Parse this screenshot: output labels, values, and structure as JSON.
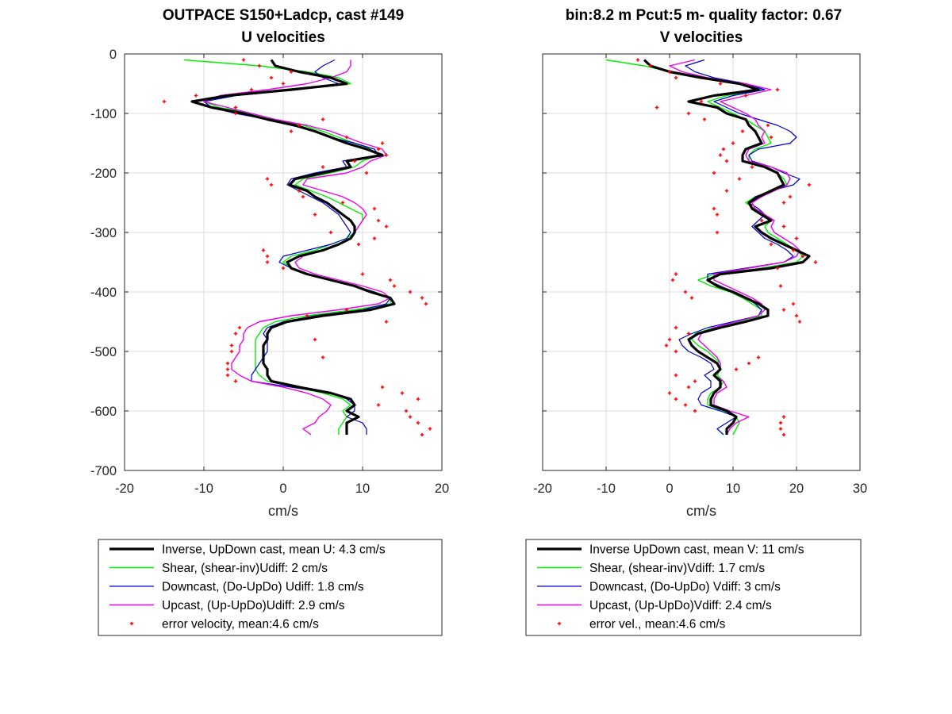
{
  "chart_data": [
    {
      "type": "line",
      "title": "OUTPACE S150+Ladcp, cast #149",
      "subtitle": "U velocities",
      "xlabel": "cm/s",
      "ylabel": "",
      "xlim": [
        -20,
        20
      ],
      "ylim": [
        -700,
        0
      ],
      "xticks": [
        "-20",
        "-10",
        "0",
        "10",
        "20"
      ],
      "yticks": [
        "0",
        "-100",
        "-200",
        "-300",
        "-400",
        "-500",
        "-600",
        "-700"
      ],
      "grid": true,
      "legend_position": "below",
      "colors": {
        "inverse": "#000000",
        "shear": "#00ee00",
        "downcast": "#0000cc",
        "upcast": "#ee00ee",
        "error": "#ff0000"
      },
      "legend": [
        "Inverse, UpDown cast, mean U:  4.3 cm/s",
        "Shear, (shear-inv)Udiff:  2 cm/s",
        "Downcast, (Do-UpDo) Udiff:  1.8 cm/s",
        "Upcast, (Up-UpDo)Udiff:  2.9 cm/s",
        "error velocity, mean:4.6 cm/s"
      ],
      "depth": [
        -10,
        -20,
        -30,
        -40,
        -50,
        -60,
        -70,
        -80,
        -90,
        -100,
        -110,
        -120,
        -130,
        -140,
        -150,
        -160,
        -170,
        -180,
        -190,
        -200,
        -210,
        -220,
        -230,
        -240,
        -250,
        -260,
        -270,
        -280,
        -290,
        -300,
        -310,
        -320,
        -330,
        -340,
        -350,
        -360,
        -370,
        -380,
        -390,
        -400,
        -410,
        -420,
        -430,
        -440,
        -450,
        -460,
        -470,
        -480,
        -490,
        -500,
        -510,
        -520,
        -530,
        -540,
        -550,
        -560,
        -570,
        -580,
        -590,
        -600,
        -610,
        -620,
        -630,
        -640
      ],
      "series": [
        {
          "key": "inverse",
          "values": [
            -1.5,
            -1.0,
            2.0,
            6.0,
            8.0,
            1.0,
            -7.0,
            -11.5,
            -9.0,
            -5.0,
            -2.0,
            1.5,
            4.0,
            6.0,
            8.0,
            10.5,
            12.5,
            8.0,
            8.5,
            5.0,
            1.5,
            0.8,
            3.0,
            4.0,
            5.5,
            6.5,
            7.5,
            8.5,
            9.0,
            9.0,
            8.5,
            7.0,
            5.0,
            2.0,
            0.5,
            1.0,
            3.0,
            6.0,
            9.0,
            11.0,
            13.5,
            14.0,
            11.0,
            5.0,
            0.5,
            -1.5,
            -2.0,
            -2.0,
            -2.5,
            -2.5,
            -2.5,
            -2.5,
            -2.0,
            -2.0,
            -1.5,
            2.0,
            6.0,
            8.5,
            9.0,
            8.0,
            9.5,
            8.0,
            8.0,
            8.0
          ]
        },
        {
          "key": "shear",
          "values": [
            -12.5,
            -3.0,
            3.0,
            7.0,
            8.5,
            0.0,
            -6.0,
            -10.0,
            -8.0,
            -4.0,
            -1.0,
            2.5,
            5.0,
            7.0,
            9.0,
            11.0,
            12.0,
            10.0,
            9.0,
            6.0,
            2.5,
            1.5,
            3.5,
            5.5,
            7.0,
            8.5,
            10.0,
            10.0,
            9.5,
            9.0,
            8.0,
            6.0,
            4.0,
            1.0,
            0.0,
            1.0,
            3.0,
            6.0,
            9.0,
            11.5,
            13.5,
            13.5,
            9.0,
            3.0,
            -1.0,
            -2.5,
            -3.0,
            -3.5,
            -3.5,
            -3.5,
            -3.5,
            -3.5,
            -3.5,
            -3.0,
            -2.0,
            1.5,
            5.0,
            7.5,
            8.5,
            7.5,
            8.0,
            7.5,
            7.0,
            7.0
          ]
        },
        {
          "key": "downcast",
          "values": [
            6.5,
            5.0,
            4.0,
            5.0,
            7.0,
            2.0,
            -6.0,
            -10.0,
            -9.0,
            -6.0,
            -2.0,
            1.0,
            4.0,
            6.0,
            9.0,
            11.5,
            12.0,
            7.5,
            8.0,
            4.0,
            1.0,
            0.5,
            2.0,
            3.5,
            5.0,
            6.0,
            7.0,
            7.5,
            8.0,
            8.5,
            8.0,
            6.0,
            3.0,
            0.0,
            -0.5,
            1.0,
            3.0,
            6.0,
            9.0,
            11.5,
            13.5,
            13.0,
            10.0,
            4.0,
            0.0,
            -2.0,
            -2.5,
            -2.0,
            -2.0,
            -2.0,
            -2.5,
            -3.0,
            -3.5,
            -4.0,
            -4.0,
            1.0,
            6.0,
            8.0,
            9.0,
            9.0,
            8.0,
            10.0,
            10.5,
            10.5
          ]
        },
        {
          "key": "upcast",
          "values": [
            8.5,
            8.5,
            8.0,
            6.0,
            3.0,
            -2.0,
            -8.0,
            -10.0,
            -7.0,
            -4.0,
            -1.0,
            3.0,
            6.0,
            8.0,
            10.0,
            12.5,
            13.0,
            11.0,
            10.0,
            8.0,
            3.0,
            2.5,
            5.0,
            7.5,
            9.0,
            10.0,
            10.5,
            10.0,
            9.5,
            9.0,
            8.5,
            7.0,
            5.0,
            2.5,
            1.5,
            2.0,
            4.0,
            7.0,
            10.0,
            12.5,
            13.5,
            12.0,
            7.0,
            1.0,
            -3.0,
            -4.5,
            -5.0,
            -5.0,
            -5.5,
            -5.5,
            -6.0,
            -6.5,
            -6.5,
            -5.5,
            -4.0,
            0.0,
            3.0,
            5.0,
            6.0,
            5.5,
            4.5,
            4.0,
            2.5,
            3.5
          ]
        },
        {
          "key": "error",
          "values": [
            -5.0,
            -3.0,
            1.0,
            -1.5,
            0.0,
            -4.0,
            -11.0,
            -15.0,
            -6.0,
            -6.0,
            5.0,
            2.0,
            1.0,
            8.0,
            12.5,
            12.0,
            13.0,
            9.0,
            5.0,
            10.5,
            -2.0,
            -1.5,
            2.0,
            2.5,
            7.5,
            11.5,
            4.0,
            12.0,
            13.0,
            6.0,
            11.5,
            9.5,
            -2.5,
            -2.0,
            -2.0,
            0.0,
            10.0,
            13.5,
            14.0,
            16.0,
            17.5,
            18.0,
            8.0,
            3.0,
            13.0,
            -5.5,
            -6.0,
            4.0,
            -6.5,
            -6.5,
            5.0,
            -7.0,
            -7.0,
            -7.0,
            -6.0,
            12.5,
            15.0,
            17.0,
            12.0,
            15.5,
            16.0,
            17.0,
            18.5,
            17.5
          ]
        }
      ]
    },
    {
      "type": "line",
      "title": "bin:8.2 m  Pcut:5 m- quality factor:  0.67",
      "subtitle": "V velocities",
      "xlabel": "cm/s",
      "ylabel": "",
      "xlim": [
        -20,
        30
      ],
      "ylim": [
        -700,
        0
      ],
      "xticks": [
        "-20",
        "-10",
        "0",
        "10",
        "20",
        "30"
      ],
      "yticks": [],
      "grid": true,
      "legend_position": "below",
      "colors": {
        "inverse": "#000000",
        "shear": "#00ee00",
        "downcast": "#0000cc",
        "upcast": "#ee00ee",
        "error": "#ff0000"
      },
      "legend": [
        "Inverse UpDown cast, mean V:  11 cm/s",
        "Shear, (shear-inv)Vdiff:  1.7 cm/s",
        "Downcast, (Do-UpDo) Vdiff:  3 cm/s",
        "Upcast, (Up-UpDo)Vdiff:  2.4 cm/s",
        "error vel., mean:4.6 cm/s"
      ],
      "depth": [
        -10,
        -20,
        -30,
        -40,
        -50,
        -60,
        -70,
        -80,
        -90,
        -100,
        -110,
        -120,
        -130,
        -140,
        -150,
        -160,
        -170,
        -180,
        -190,
        -200,
        -210,
        -220,
        -230,
        -240,
        -250,
        -260,
        -270,
        -280,
        -290,
        -300,
        -310,
        -320,
        -330,
        -340,
        -350,
        -360,
        -370,
        -380,
        -390,
        -400,
        -410,
        -420,
        -430,
        -440,
        -450,
        -460,
        -470,
        -480,
        -490,
        -500,
        -510,
        -520,
        -530,
        -540,
        -550,
        -560,
        -570,
        -580,
        -590,
        -600,
        -610,
        -620,
        -630,
        -640
      ],
      "series": [
        {
          "key": "inverse",
          "values": [
            -4.0,
            -3.0,
            0.0,
            5.0,
            11.0,
            14.0,
            7.0,
            3.0,
            7.5,
            9.0,
            12.0,
            12.5,
            13.5,
            14.0,
            14.5,
            12.0,
            11.5,
            11.5,
            15.0,
            17.0,
            17.5,
            18.0,
            16.0,
            14.0,
            12.5,
            13.0,
            14.5,
            16.0,
            13.5,
            14.5,
            16.0,
            18.0,
            20.0,
            22.0,
            21.0,
            16.0,
            8.0,
            6.0,
            7.5,
            10.0,
            12.0,
            14.0,
            15.5,
            15.5,
            12.0,
            8.0,
            4.5,
            3.0,
            3.5,
            4.5,
            6.0,
            7.5,
            8.0,
            7.0,
            8.0,
            8.0,
            7.0,
            6.5,
            6.5,
            9.0,
            10.5,
            10.0,
            9.0,
            9.0
          ]
        },
        {
          "key": "shear",
          "values": [
            -10.0,
            -4.0,
            0.0,
            5.0,
            11.0,
            14.5,
            9.0,
            6.0,
            8.0,
            10.0,
            12.0,
            13.5,
            15.0,
            15.5,
            16.0,
            13.5,
            12.5,
            12.5,
            15.0,
            17.0,
            18.0,
            18.5,
            16.0,
            13.5,
            12.0,
            13.5,
            15.0,
            16.0,
            15.0,
            15.5,
            17.0,
            18.5,
            20.0,
            21.0,
            20.0,
            14.5,
            7.0,
            4.5,
            6.5,
            9.5,
            11.5,
            13.0,
            14.5,
            14.5,
            11.0,
            7.0,
            4.0,
            3.5,
            4.5,
            6.0,
            7.0,
            8.0,
            8.0,
            7.5,
            8.5,
            8.0,
            6.5,
            6.0,
            6.0,
            8.5,
            10.5,
            11.0,
            10.5,
            10.0
          ]
        },
        {
          "key": "downcast",
          "values": [
            5.5,
            2.5,
            4.0,
            7.0,
            12.0,
            15.0,
            10.0,
            7.0,
            9.0,
            11.0,
            14.0,
            17.0,
            19.0,
            20.0,
            19.0,
            14.0,
            12.5,
            13.0,
            16.0,
            18.0,
            20.5,
            19.5,
            16.0,
            13.5,
            12.5,
            14.0,
            15.0,
            14.0,
            13.0,
            14.0,
            15.0,
            17.0,
            18.5,
            19.5,
            18.0,
            12.0,
            6.0,
            6.0,
            8.0,
            10.0,
            12.0,
            13.5,
            14.5,
            14.0,
            10.0,
            6.0,
            3.5,
            1.5,
            2.0,
            3.0,
            5.0,
            6.5,
            7.0,
            5.5,
            6.5,
            6.5,
            5.0,
            4.5,
            5.0,
            8.0,
            10.5,
            9.0,
            7.5,
            8.5
          ]
        },
        {
          "key": "upcast",
          "values": [
            4.0,
            0.0,
            2.0,
            6.0,
            12.0,
            16.0,
            12.0,
            8.0,
            10.0,
            12.0,
            13.5,
            14.0,
            15.0,
            14.5,
            15.0,
            12.5,
            12.0,
            12.5,
            16.0,
            18.5,
            19.0,
            18.5,
            16.5,
            14.5,
            13.0,
            13.5,
            15.0,
            16.5,
            16.0,
            16.5,
            18.0,
            19.5,
            20.5,
            20.0,
            18.0,
            12.5,
            7.0,
            7.0,
            9.0,
            11.0,
            13.0,
            14.5,
            15.0,
            14.0,
            10.5,
            7.0,
            5.0,
            4.5,
            5.5,
            6.5,
            7.5,
            8.0,
            8.0,
            7.0,
            8.5,
            9.0,
            7.5,
            7.0,
            7.0,
            9.5,
            12.5,
            10.5,
            9.5,
            9.0
          ]
        },
        {
          "key": "error",
          "values": [
            -5.0,
            -3.0,
            0.0,
            1.0,
            8.0,
            17.0,
            12.0,
            5.0,
            -2.0,
            3.0,
            5.5,
            15.5,
            11.5,
            16.0,
            10.0,
            8.5,
            8.0,
            9.0,
            13.0,
            7.0,
            11.0,
            22.0,
            9.0,
            19.0,
            18.0,
            7.0,
            7.5,
            14.5,
            18.0,
            7.5,
            20.0,
            16.0,
            19.5,
            21.0,
            23.0,
            17.0,
            1.0,
            0.5,
            17.5,
            2.5,
            3.5,
            19.5,
            18.0,
            20.0,
            20.5,
            1.0,
            3.0,
            0.0,
            -0.5,
            1.0,
            14.0,
            12.5,
            10.5,
            1.0,
            4.0,
            3.0,
            0.0,
            1.0,
            2.5,
            4.0,
            18.0,
            17.5,
            17.5,
            18.0
          ]
        }
      ]
    }
  ]
}
